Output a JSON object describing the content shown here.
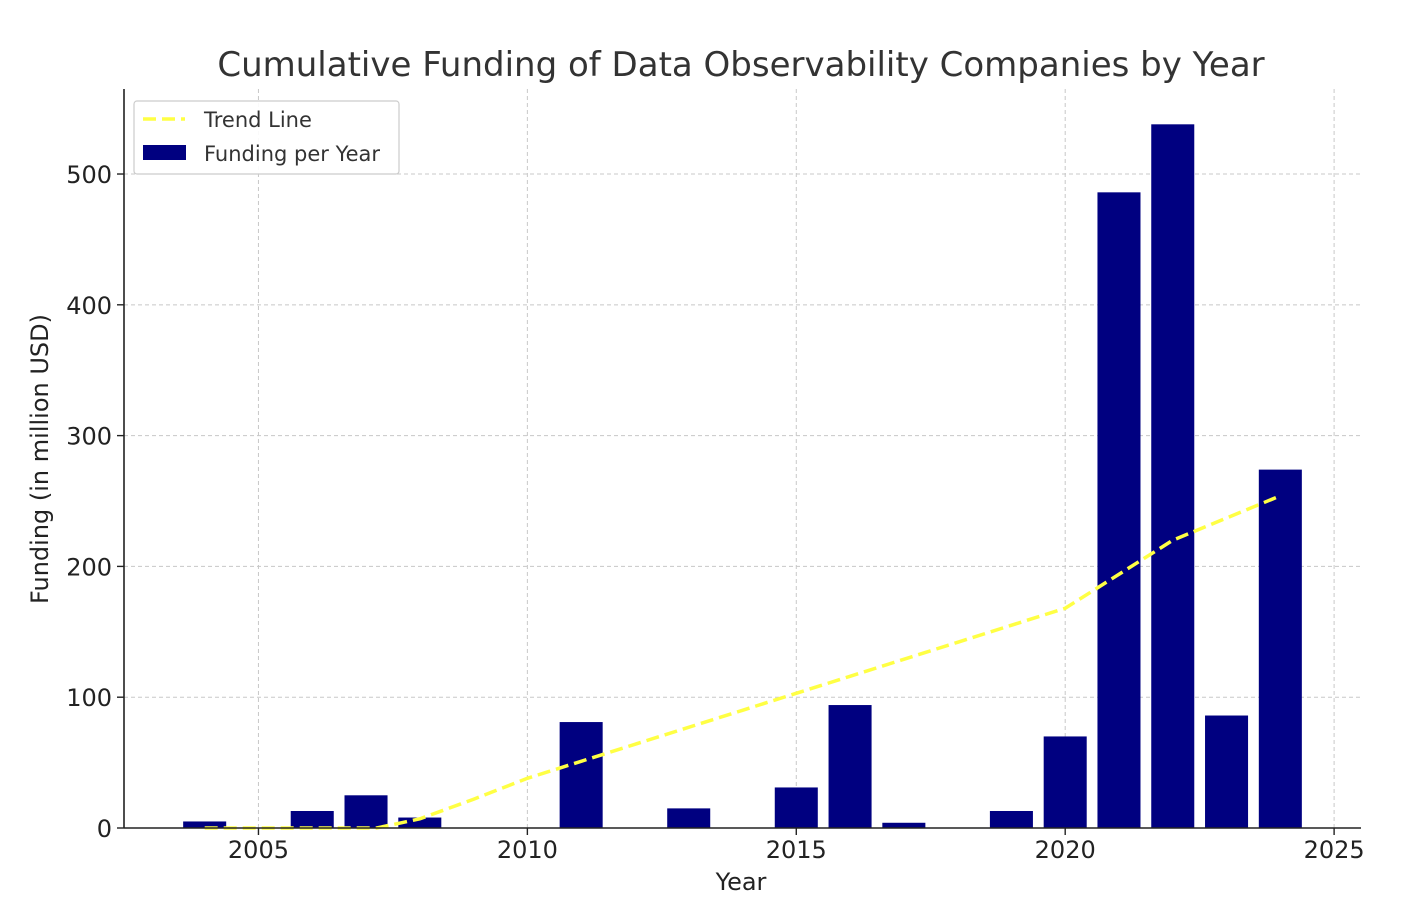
{
  "chart_data": {
    "type": "bar",
    "title": "Cumulative Funding of Data Observability Companies by Year",
    "xlabel": "Year",
    "ylabel": "Funding (in million USD)",
    "xlim": [
      2002.5,
      2025.5
    ],
    "ylim": [
      0,
      565
    ],
    "x_ticks": [
      2005,
      2010,
      2015,
      2020,
      2025
    ],
    "y_ticks": [
      0,
      100,
      200,
      300,
      400,
      500
    ],
    "grid": true,
    "legend_position": "top-left",
    "categories": [
      2004,
      2006,
      2007,
      2008,
      2011,
      2013,
      2015,
      2016,
      2017,
      2019,
      2020,
      2021,
      2022,
      2023,
      2024
    ],
    "series": [
      {
        "name": "Funding per Year",
        "kind": "bar",
        "color": "#000080",
        "values": [
          5,
          13,
          25,
          8,
          81,
          15,
          31,
          94,
          4,
          13,
          70,
          486,
          538,
          86,
          274
        ]
      },
      {
        "name": "Trend Line",
        "kind": "line",
        "style": "dashed",
        "color": "#ffff44",
        "points": [
          {
            "x": 2004,
            "y": 0
          },
          {
            "x": 2007.2,
            "y": 0
          },
          {
            "x": 2008,
            "y": 7
          },
          {
            "x": 2009,
            "y": 22
          },
          {
            "x": 2010,
            "y": 38
          },
          {
            "x": 2012,
            "y": 64
          },
          {
            "x": 2014,
            "y": 90
          },
          {
            "x": 2016,
            "y": 116
          },
          {
            "x": 2018,
            "y": 142
          },
          {
            "x": 2020,
            "y": 168
          },
          {
            "x": 2022,
            "y": 220
          },
          {
            "x": 2024,
            "y": 254
          }
        ]
      }
    ]
  }
}
